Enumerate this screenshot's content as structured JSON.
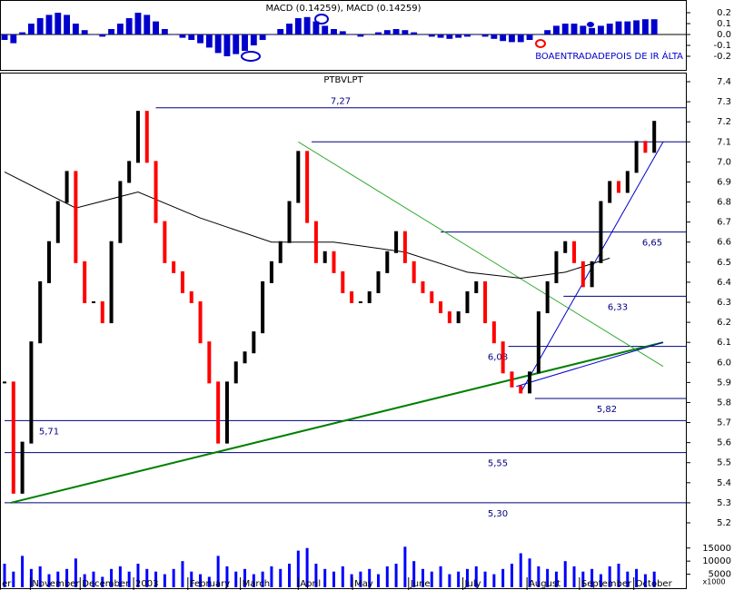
{
  "chart_data": [
    {
      "type": "macd",
      "title": "MACD (0.14259), MACD (0.14259)",
      "annotation": "BOAENTRADADEPOIS DE IR ÁLTA",
      "color": "#0000cc",
      "xlim": [
        0,
        74
      ],
      "values": [
        -0.05,
        -0.08,
        0.02,
        0.1,
        0.15,
        0.18,
        0.2,
        0.18,
        0.1,
        0.04,
        0.0,
        -0.02,
        0.05,
        0.1,
        0.15,
        0.2,
        0.18,
        0.12,
        0.05,
        0.0,
        -0.03,
        -0.05,
        -0.08,
        -0.12,
        -0.17,
        -0.2,
        -0.18,
        -0.15,
        -0.1,
        -0.05,
        0.0,
        0.05,
        0.1,
        0.15,
        0.16,
        0.12,
        0.08,
        0.05,
        0.03,
        0.0,
        -0.02,
        0.0,
        0.02,
        0.04,
        0.05,
        0.04,
        0.02,
        0.0,
        -0.02,
        -0.03,
        -0.04,
        -0.03,
        -0.02,
        0.0,
        -0.02,
        -0.04,
        -0.06,
        -0.07,
        -0.07,
        -0.05,
        0.0,
        0.04,
        0.08,
        0.1,
        0.1,
        0.08,
        0.06,
        0.08,
        0.1,
        0.12,
        0.12,
        0.13,
        0.14,
        0.14
      ],
      "ylim": [
        -0.25,
        0.25
      ],
      "yticks": [
        0.2,
        0.1,
        {
          "value": 0,
          "label": "0.0"
        },
        -0.1,
        -0.2
      ]
    },
    {
      "type": "price",
      "title": "PTBVLPT",
      "up_color": "#000000",
      "down_color": "#ff0000",
      "xlim": [
        0,
        74
      ],
      "values": [
        5.9,
        5.35,
        5.6,
        6.1,
        6.4,
        6.6,
        6.8,
        6.95,
        6.5,
        6.3,
        6.3,
        6.2,
        6.6,
        6.9,
        7.0,
        7.25,
        7.0,
        6.7,
        6.5,
        6.45,
        6.35,
        6.3,
        6.1,
        5.9,
        5.6,
        5.9,
        6.0,
        6.05,
        6.15,
        6.4,
        6.5,
        6.6,
        6.8,
        7.05,
        6.7,
        6.5,
        6.55,
        6.45,
        6.35,
        6.3,
        6.3,
        6.35,
        6.45,
        6.55,
        6.65,
        6.5,
        6.4,
        6.35,
        6.3,
        6.25,
        6.2,
        6.25,
        6.35,
        6.4,
        6.2,
        6.1,
        5.95,
        5.88,
        5.85,
        5.95,
        6.25,
        6.4,
        6.55,
        6.6,
        6.5,
        6.38,
        6.5,
        6.8,
        6.9,
        6.85,
        6.95,
        7.1,
        7.05,
        7.2
      ],
      "moving_average": {
        "color": "#000000",
        "x": [
          0,
          8,
          15,
          22,
          30,
          37,
          45,
          52,
          58,
          63,
          68
        ],
        "values": [
          6.95,
          6.77,
          6.85,
          6.72,
          6.6,
          6.6,
          6.55,
          6.45,
          6.42,
          6.45,
          6.52
        ]
      },
      "trendlines": [
        {
          "color": "#008000",
          "x": [
            0.7,
            74
          ],
          "values": [
            5.3,
            6.1
          ]
        },
        {
          "color": "#33aa33",
          "x": [
            33,
            74
          ],
          "values": [
            7.1,
            5.98
          ]
        },
        {
          "color": "#0000cc",
          "x": [
            58,
            74
          ],
          "values": [
            5.85,
            7.1
          ]
        },
        {
          "color": "#0000cc",
          "x": [
            57.5,
            74
          ],
          "values": [
            5.88,
            6.1
          ]
        }
      ],
      "levels": [
        {
          "value": 7.27,
          "label": "7,27",
          "x_start": 17
        },
        {
          "value": 7.1,
          "x_start": 34.5
        },
        {
          "value": 6.65,
          "label": "6,65",
          "x_start": 49
        },
        {
          "value": 6.33,
          "label": "6,33",
          "x_start": 62.8
        },
        {
          "value": 6.08,
          "label": "6,08",
          "x_start": 56.6
        },
        {
          "value": 5.82,
          "label": "5,82",
          "x_start": 59.6
        },
        {
          "value": 5.71,
          "label": "5,71",
          "x_start": 0
        },
        {
          "value": 5.55,
          "label": "5,55",
          "x_start": 0
        },
        {
          "value": 5.3,
          "label": "5,30",
          "x_start": 0
        }
      ],
      "ylim": [
        5.2,
        7.4
      ],
      "yticks": [
        7.4,
        7.3,
        7.2,
        7.1,
        {
          "value": 7,
          "label": "7.0"
        },
        6.9,
        6.8,
        6.7,
        6.6,
        6.5,
        6.4,
        6.3,
        6.2,
        6.1,
        {
          "value": 6,
          "label": "6.0"
        },
        5.9,
        5.8,
        5.7,
        5.6,
        5.5,
        5.4,
        5.3,
        5.2
      ]
    },
    {
      "type": "volume",
      "color": "#0000ff",
      "unit_label": "x1000",
      "xlim": [
        0,
        74
      ],
      "values": [
        9000,
        6000,
        12000,
        7000,
        8000,
        5000,
        6000,
        7000,
        11000,
        5000,
        6000,
        4000,
        7000,
        8000,
        6000,
        9000,
        7000,
        6000,
        5000,
        7000,
        10000,
        6000,
        5000,
        4000,
        12000,
        8000,
        6000,
        7000,
        5000,
        6000,
        8000,
        7000,
        9000,
        14000,
        15000,
        9000,
        7000,
        6000,
        8000,
        5000,
        6000,
        7000,
        5000,
        8000,
        9000,
        15500,
        10000,
        7000,
        6000,
        8000,
        5000,
        6000,
        7000,
        8000,
        6000,
        5000,
        7000,
        9000,
        13000,
        11000,
        8000,
        7000,
        6000,
        10000,
        8000,
        6000,
        7000,
        5000,
        8000,
        9000,
        6000,
        7000,
        5000,
        6000
      ],
      "ylim": [
        0,
        17000
      ],
      "yticks": [
        15000,
        10000,
        5000
      ],
      "xticks": [
        {
          "value": -0.5,
          "label": "er"
        },
        {
          "value": 2.9,
          "label": "November"
        },
        {
          "value": 8.5,
          "label": "December"
        },
        {
          "value": 14.5,
          "label": "2003"
        },
        {
          "value": 20.6,
          "label": "February"
        },
        {
          "value": 26.5,
          "label": "March"
        },
        {
          "value": 33,
          "label": "April"
        },
        {
          "value": 39.1,
          "label": "May"
        },
        {
          "value": 45.4,
          "label": "June"
        },
        {
          "value": 51.5,
          "label": "July"
        },
        {
          "value": 58.7,
          "label": "August"
        },
        {
          "value": 64.6,
          "label": "September"
        },
        {
          "value": 70.7,
          "label": "October"
        }
      ]
    }
  ]
}
